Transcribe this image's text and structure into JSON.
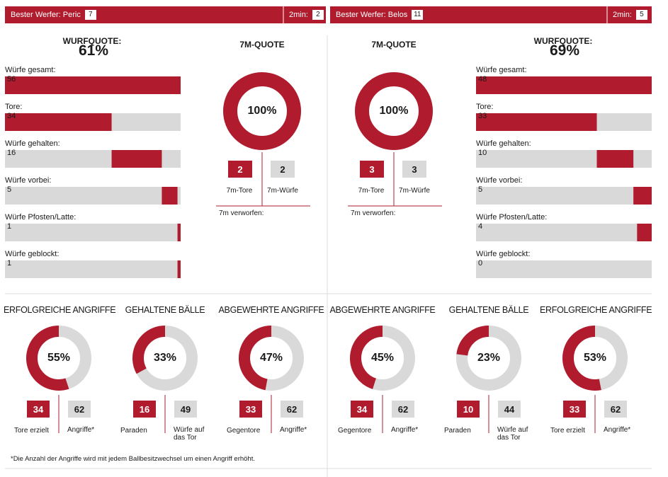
{
  "header": [
    {
      "label": "Bester Werfer: Peric",
      "value": 7,
      "two_min_label": "2min:",
      "two_min": 2
    },
    {
      "label": "Bester Werfer: Belos",
      "value": 11,
      "two_min_label": "2min:",
      "two_min": 5
    }
  ],
  "teams": [
    {
      "quote_label": "WURFQUOTE:",
      "quote": {
        "value": 61,
        "label": "61%"
      },
      "shots": [
        {
          "label": "Würfe gesamt:",
          "value": 56
        },
        {
          "label": "Tore:",
          "value": 34
        },
        {
          "label": "Würfe gehalten:",
          "value": 16
        },
        {
          "label": "Würfe vorbei:",
          "value": 5
        },
        {
          "label": "Würfe Pfosten/Latte:",
          "value": 1
        },
        {
          "label": "Würfe geblockt:",
          "value": 1
        }
      ],
      "seven_m": {
        "title": "7M-QUOTE",
        "quote": {
          "value": 100,
          "label": "100%"
        },
        "goals": 2,
        "attempts": 2,
        "goals_label": "7m-Tore",
        "attempts_label": "7m-Würfe",
        "missed_label": "7m verworfen:"
      }
    },
    {
      "quote_label": "WURFQUOTE:",
      "quote": {
        "value": 69,
        "label": "69%"
      },
      "shots": [
        {
          "label": "Würfe gesamt:",
          "value": 48
        },
        {
          "label": "Tore:",
          "value": 33
        },
        {
          "label": "Würfe gehalten:",
          "value": 10
        },
        {
          "label": "Würfe vorbei:",
          "value": 5
        },
        {
          "label": "Würfe Pfosten/Latte:",
          "value": 4
        },
        {
          "label": "Würfe geblockt:",
          "value": 0
        }
      ],
      "seven_m": {
        "title": "7M-QUOTE",
        "quote": {
          "value": 100,
          "label": "100%"
        },
        "goals": 3,
        "attempts": 3,
        "goals_label": "7m-Tore",
        "attempts_label": "7m-Würfe",
        "missed_label": "7m verworfen:"
      }
    }
  ],
  "donuts": [
    {
      "title": "ERFOLGREICHE ANGRIFFE",
      "pct": {
        "value": 55,
        "label": "55%"
      },
      "a": 34,
      "b": 62,
      "a_label": "Tore erzielt",
      "b_label": "Angriffe*"
    },
    {
      "title": "GEHALTENE BÄLLE",
      "pct": {
        "value": 33,
        "label": "33%"
      },
      "a": 16,
      "b": 49,
      "a_label": "Paraden",
      "b_label": "Würfe auf das Tor"
    },
    {
      "title": "ABGEWEHRTE ANGRIFFE",
      "pct": {
        "value": 47,
        "label": "47%"
      },
      "a": 33,
      "b": 62,
      "a_label": "Gegentore",
      "b_label": "Angriffe*"
    },
    {
      "title": "ABGEWEHRTE ANGRIFFE",
      "pct": {
        "value": 45,
        "label": "45%"
      },
      "a": 34,
      "b": 62,
      "a_label": "Gegentore",
      "b_label": "Angriffe*"
    },
    {
      "title": "GEHALTENE BÄLLE",
      "pct": {
        "value": 23,
        "label": "23%"
      },
      "a": 10,
      "b": 44,
      "a_label": "Paraden",
      "b_label": "Würfe auf das Tor"
    },
    {
      "title": "ERFOLGREICHE ANGRIFFE",
      "pct": {
        "value": 53,
        "label": "53%"
      },
      "a": 33,
      "b": 62,
      "a_label": "Tore erzielt",
      "b_label": "Angriffe*"
    }
  ],
  "footnote": "*Die Anzahl der Angriffe wird mit jedem Ballbesitzwechsel um einen Angriff erhöht."
}
